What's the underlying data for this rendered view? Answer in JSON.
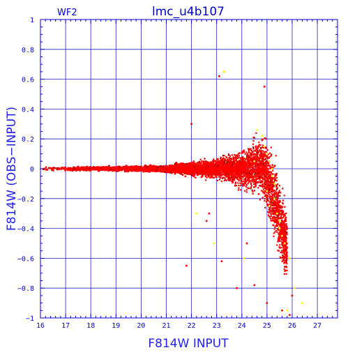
{
  "chart_data": {
    "type": "scatter",
    "title": "lmc_u4b107",
    "panel_label": "WF2",
    "xlabel": "F814W INPUT",
    "ylabel": "F814W (OBS−INPUT)",
    "xlim": [
      16,
      27.8
    ],
    "ylim": [
      -1,
      1
    ],
    "x_ticks": [
      16,
      17,
      18,
      19,
      20,
      21,
      22,
      23,
      24,
      25,
      26,
      27
    ],
    "y_ticks": [
      -1,
      -0.8,
      -0.6,
      -0.4,
      -0.2,
      0,
      0.2,
      0.4,
      0.6,
      0.8,
      1
    ],
    "y_tick_labels": [
      "−1",
      "−0.8",
      "−0.6",
      "−0.4",
      "−0.2",
      "0",
      "0.2",
      "0.4",
      "0.6",
      "0.8",
      "1"
    ],
    "grid": true,
    "colors": {
      "axis": "#0000cc",
      "grid": "#2222bb",
      "primary_points": "#ff0000",
      "secondary_points": "#ffff00",
      "edge_points": "#aa0000"
    },
    "series": [
      {
        "color": "#ff0000",
        "envelope": [
          {
            "x": 16.0,
            "y_center": 0.0,
            "y_half_width": 0.02
          },
          {
            "x": 18.0,
            "y_center": 0.0,
            "y_half_width": 0.02
          },
          {
            "x": 20.0,
            "y_center": 0.0,
            "y_half_width": 0.03
          },
          {
            "x": 21.0,
            "y_center": 0.0,
            "y_half_width": 0.04
          },
          {
            "x": 22.0,
            "y_center": 0.0,
            "y_half_width": 0.07
          },
          {
            "x": 23.0,
            "y_center": 0.0,
            "y_half_width": 0.1
          },
          {
            "x": 24.0,
            "y_center": 0.0,
            "y_half_width": 0.18
          },
          {
            "x": 24.8,
            "y_center": 0.02,
            "y_half_width": 0.3
          },
          {
            "x": 25.3,
            "y_center": -0.2,
            "y_half_width": 0.4
          },
          {
            "x": 25.8,
            "y_center": -0.55,
            "y_half_width": 0.35
          }
        ],
        "points": [
          [
            22.0,
            0.3
          ],
          [
            23.1,
            0.62
          ],
          [
            23.3,
            0.65
          ],
          [
            24.9,
            0.55
          ],
          [
            22.6,
            -0.35
          ],
          [
            23.2,
            -0.62
          ],
          [
            23.8,
            -0.8
          ],
          [
            24.5,
            -0.78
          ],
          [
            25.0,
            -0.9
          ],
          [
            25.6,
            -0.95
          ],
          [
            25.9,
            -0.98
          ],
          [
            26.0,
            -0.85
          ],
          [
            21.8,
            -0.65
          ],
          [
            22.7,
            -0.3
          ],
          [
            24.2,
            -0.5
          ]
        ]
      },
      {
        "color": "#ffff00",
        "points": [
          [
            24.6,
            0.26
          ],
          [
            24.8,
            0.22
          ],
          [
            24.9,
            0.15
          ],
          [
            25.0,
            0.1
          ],
          [
            25.1,
            0.05
          ],
          [
            25.2,
            0.0
          ],
          [
            25.2,
            -0.05
          ],
          [
            25.3,
            -0.1
          ],
          [
            25.3,
            -0.2
          ],
          [
            25.4,
            -0.3
          ],
          [
            25.5,
            -0.35
          ],
          [
            25.5,
            -0.4
          ],
          [
            25.6,
            -0.45
          ],
          [
            25.7,
            -0.5
          ],
          [
            25.1,
            -0.25
          ],
          [
            25.9,
            -0.6
          ],
          [
            26.1,
            -0.8
          ],
          [
            23.3,
            0.65
          ],
          [
            22.2,
            -0.3
          ],
          [
            22.9,
            -0.5
          ],
          [
            24.1,
            -0.6
          ],
          [
            26.4,
            -0.9
          ],
          [
            25.8,
            -0.95
          ],
          [
            24.5,
            0.05
          ],
          [
            25.0,
            -0.15
          ]
        ]
      }
    ]
  }
}
